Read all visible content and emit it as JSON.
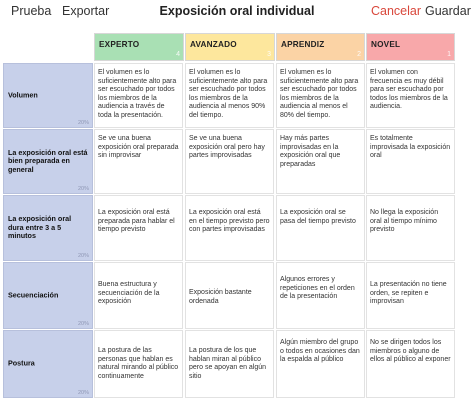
{
  "toolbar": {
    "test_label": "Prueba",
    "export_label": "Exportar",
    "title": "Exposición oral individual",
    "cancel_label": "Cancelar",
    "save_label": "Guardar",
    "cancel_color": "#d9473b"
  },
  "levels": [
    {
      "label": "EXPERTO",
      "points": "4",
      "color": "#a9e0b4"
    },
    {
      "label": "AVANZADO",
      "points": "3",
      "color": "#fde79d"
    },
    {
      "label": "APRENDIZ",
      "points": "2",
      "color": "#fbd3a5"
    },
    {
      "label": "NOVEL",
      "points": "1",
      "color": "#f8a8aa"
    }
  ],
  "criteria": [
    {
      "name": "Volumen",
      "weight": "20%",
      "descriptors": [
        "El volumen es lo suficientemente alto para ser escuchado por todos los miembros de la audiencia a través de toda la presentación.",
        "El volumen es lo suficientemente alto para ser escuchado por todos los miembros de la audiencia al menos 90% del tiempo.",
        "El volumen es lo suficientemente alto para ser escuchado por todos los miembros de la audiencia al menos el 80% del tiempo.",
        "El volumen con frecuencia es muy débil para ser escuchado por todos los miembros de la audiencia."
      ]
    },
    {
      "name": "La exposición oral está bien preparada en general",
      "weight": "20%",
      "descriptors": [
        "Se ve una buena exposición oral preparada sin improvisar",
        "Se ve una buena exposición oral pero hay partes improvisadas",
        "Hay más partes improvisadas en la exposición oral que preparadas",
        "Es totalmente improvisada la exposición oral"
      ]
    },
    {
      "name": "La exposición oral dura entre 3 a 5 minutos",
      "weight": "20%",
      "descriptors": [
        "La exposición oral está preparada para hablar el tiempo previsto",
        "La exposición oral está en el tiempo previsto pero con partes improvisadas",
        "La exposición oral se pasa del tiempo previsto",
        "No llega la exposición oral al tiempo mínimo previsto"
      ]
    },
    {
      "name": "Secuenciación",
      "weight": "20%",
      "descriptors": [
        "Buena estructura y secuenciación de la exposición",
        "Exposición bastante ordenada",
        "Algunos errores y repeticiones en el orden de la presentación",
        "La presentación no tiene orden, se repiten e improvisan"
      ]
    },
    {
      "name": "Postura",
      "weight": "20%",
      "descriptors": [
        "La postura de las personas que hablan es natural mirando al público continuamente",
        "La postura de los que hablan miran al público pero se apoyan en algún sitio",
        "Algún miembro del grupo o todos en ocasiones dan la espalda al público",
        "No se dirigen todos los miembros o alguno de ellos al público al exponer"
      ]
    }
  ]
}
